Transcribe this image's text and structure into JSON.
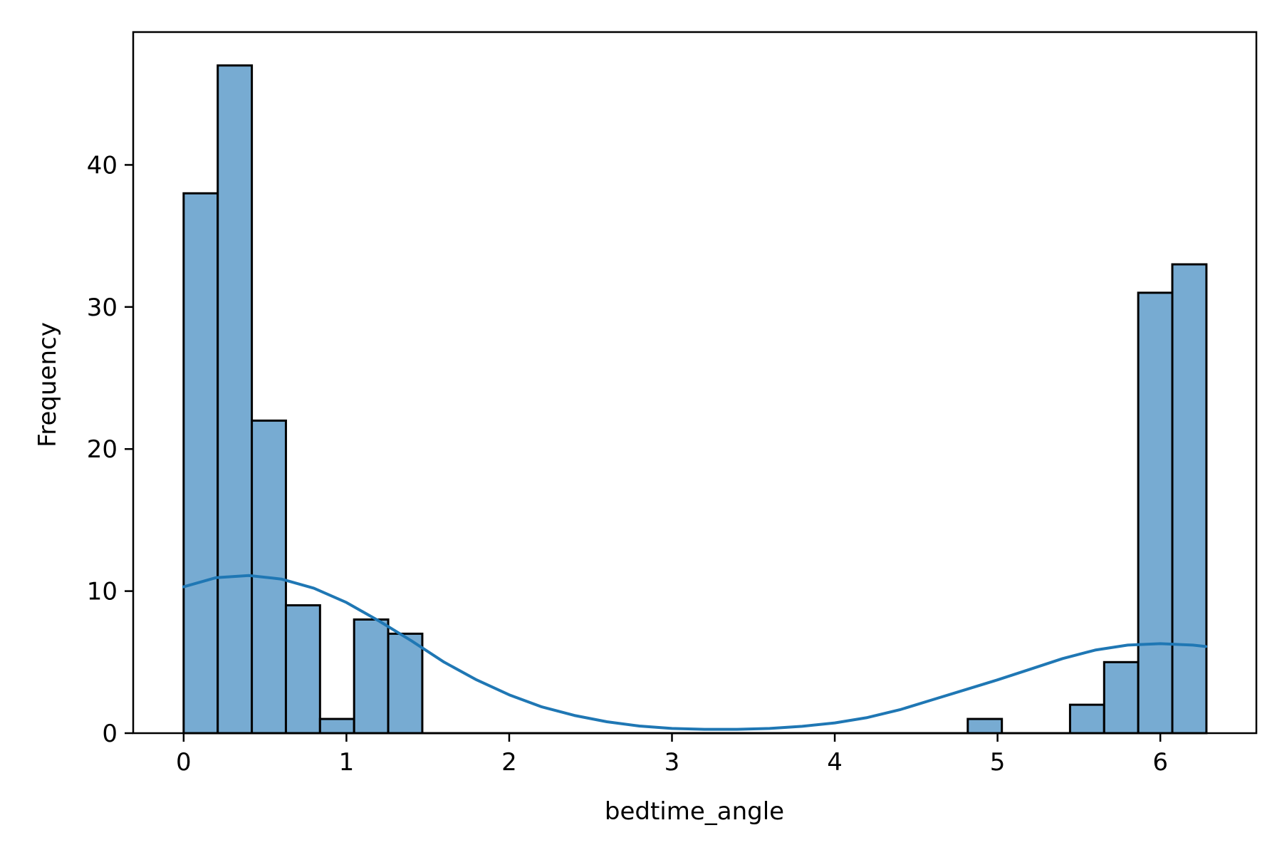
{
  "chart_data": {
    "type": "bar",
    "subtype": "histogram",
    "title": "",
    "xlabel": "bedtime_angle",
    "ylabel": "Frequency",
    "xlim": [
      -0.31,
      6.59
    ],
    "ylim": [
      0,
      49.35
    ],
    "xticks": [
      0,
      1,
      2,
      3,
      4,
      5,
      6
    ],
    "yticks": [
      0,
      10,
      20,
      30,
      40
    ],
    "grid": false,
    "legend": "none",
    "bar_fill": "#77abd2",
    "bar_edge": "#000000",
    "kde_color": "#1f77b4",
    "bins": {
      "edges": [
        0,
        0.2094,
        0.4189,
        0.6283,
        0.8378,
        1.0472,
        1.2566,
        1.4661,
        1.6755,
        1.885,
        2.0944,
        2.3038,
        2.5133,
        2.7227,
        2.9322,
        3.1416,
        3.351,
        3.5605,
        3.7699,
        3.9794,
        4.1888,
        4.3982,
        4.6077,
        4.8171,
        5.0265,
        5.236,
        5.4454,
        5.6549,
        5.8643,
        6.0737,
        6.2832
      ],
      "counts": [
        38,
        47,
        22,
        9,
        1,
        8,
        7,
        0,
        0,
        0,
        0,
        0,
        0,
        0,
        0,
        0,
        0,
        0,
        0,
        0,
        0,
        0,
        0,
        1,
        0,
        0,
        2,
        5,
        31,
        33
      ]
    },
    "kde": {
      "x": [
        0,
        0.2,
        0.4,
        0.6,
        0.8,
        1.0,
        1.2,
        1.4,
        1.6,
        1.8,
        2.0,
        2.2,
        2.4,
        2.6,
        2.8,
        3.0,
        3.2,
        3.4,
        3.6,
        3.8,
        4.0,
        4.2,
        4.4,
        4.6,
        4.8,
        5.0,
        5.2,
        5.4,
        5.6,
        5.8,
        6.0,
        6.2,
        6.28
      ],
      "y": [
        10.3,
        10.95,
        11.1,
        10.85,
        10.2,
        9.2,
        7.9,
        6.5,
        5.0,
        3.75,
        2.7,
        1.85,
        1.25,
        0.8,
        0.5,
        0.33,
        0.27,
        0.27,
        0.33,
        0.48,
        0.72,
        1.1,
        1.65,
        2.35,
        3.05,
        3.75,
        4.5,
        5.25,
        5.85,
        6.2,
        6.3,
        6.2,
        6.1
      ]
    }
  }
}
